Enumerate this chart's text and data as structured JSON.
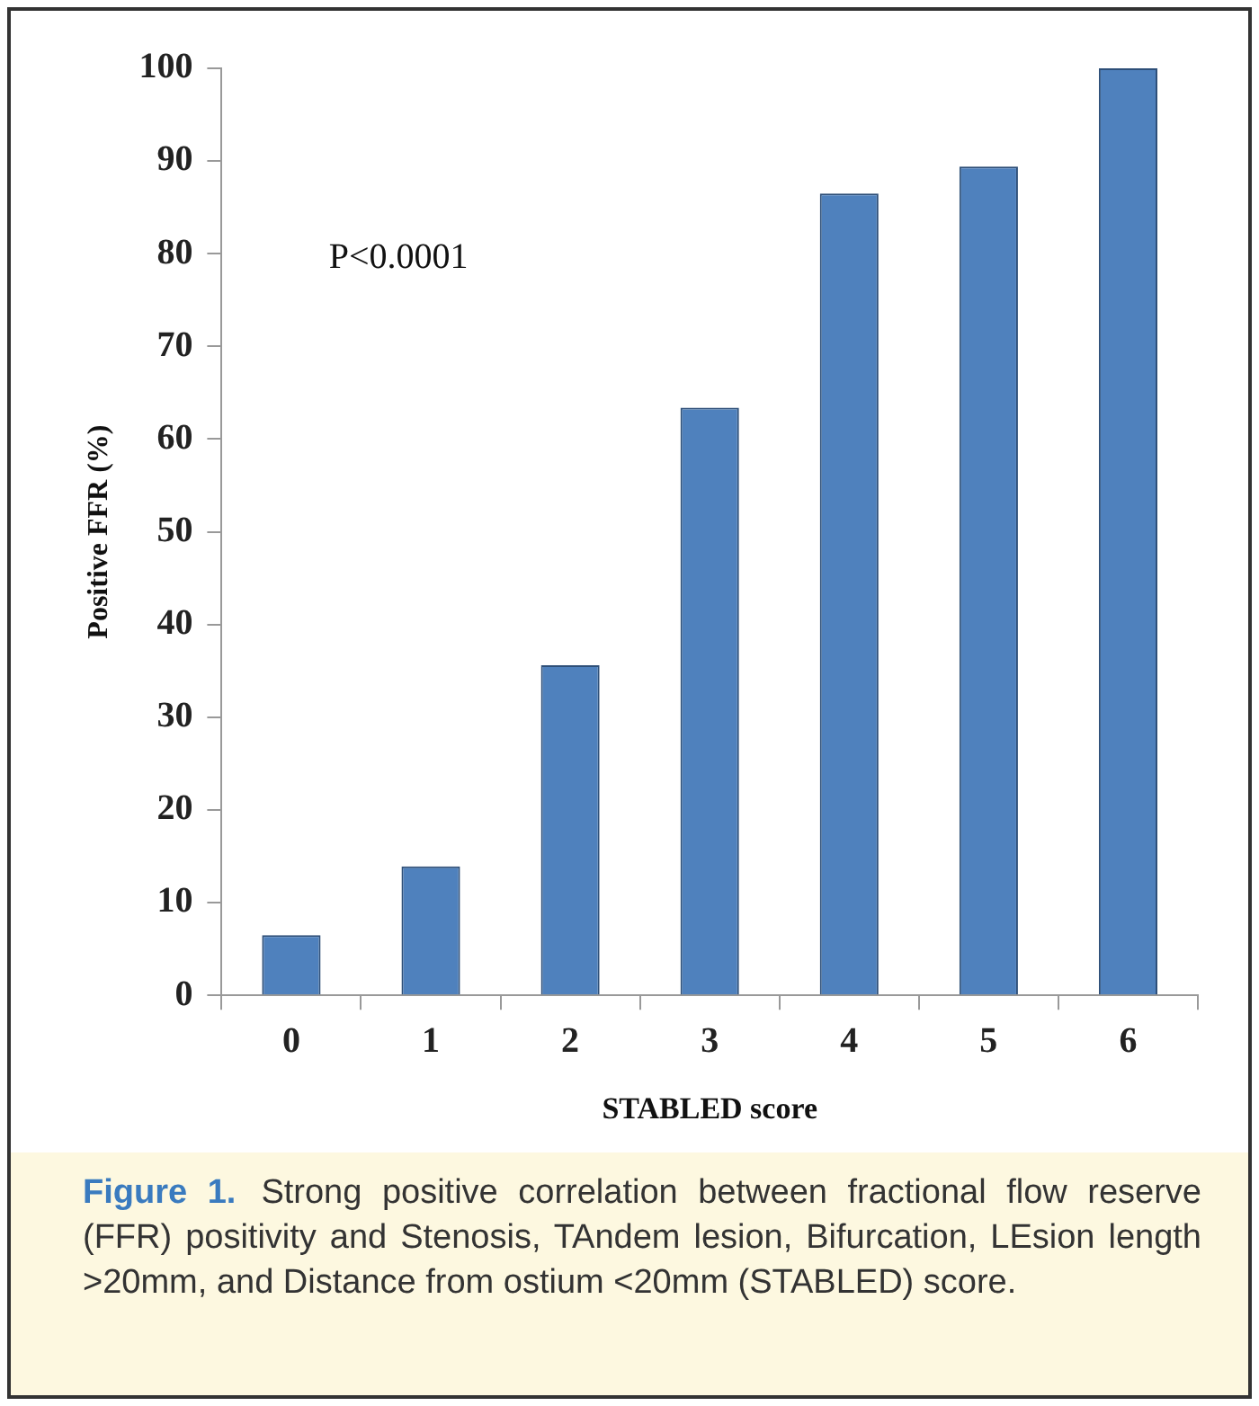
{
  "chart_data": {
    "type": "bar",
    "xlabel": "STABLED score",
    "ylabel": "Positive FFR (%)",
    "categories": [
      "0",
      "1",
      "2",
      "3",
      "4",
      "5",
      "6"
    ],
    "values": [
      6.5,
      13.9,
      35.6,
      63.4,
      86.5,
      89.4,
      100
    ],
    "color": "#4f81bd",
    "ylim": [
      0,
      100
    ],
    "yticks": [
      0,
      10,
      20,
      30,
      40,
      50,
      60,
      70,
      80,
      90,
      100
    ],
    "grid": false,
    "legend": false,
    "annotations": [
      "P<0.0001",
      "Figure 1.",
      "Strong positive correlation between fractional flow reserve (FFR) positivity and Stenosis, TAndem lesion, Bifurcation, LEsion length >20mm, and Distance from ostium <20mm (STABLED) score."
    ]
  }
}
